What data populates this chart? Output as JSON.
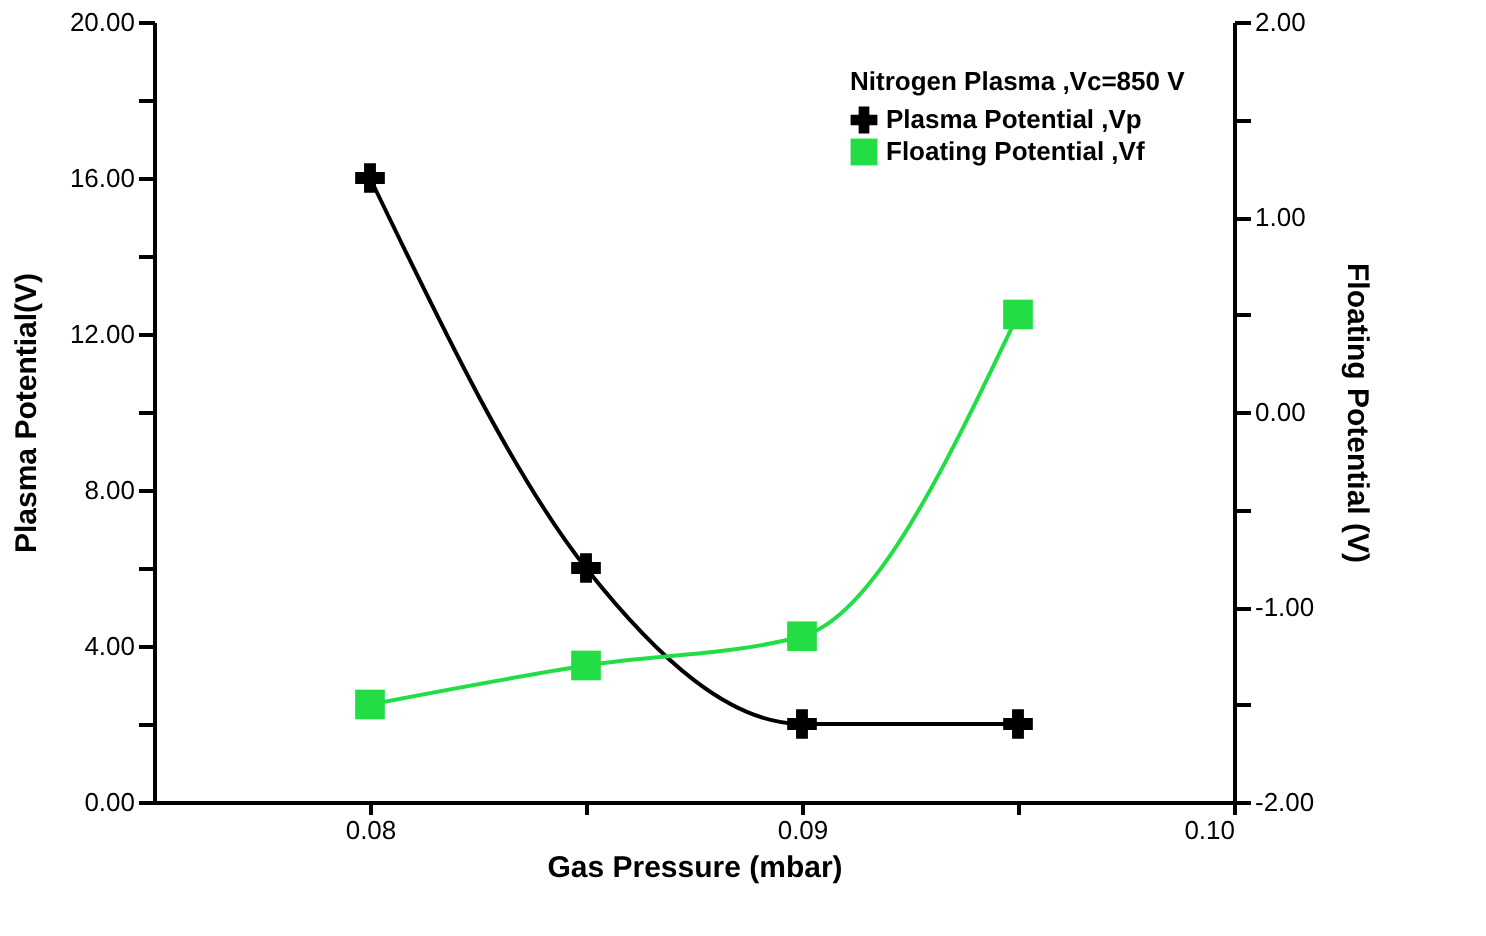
{
  "chart_data": {
    "type": "line",
    "xlabel": "Gas Pressure (mbar)",
    "ylabel": "Plasma Potential(V)",
    "y2label": "Floating Potential (V)",
    "legend_title": "Nitrogen Plasma ,Vc=850 V",
    "legend": "top right",
    "grid": false,
    "x": [
      0.08,
      0.085,
      0.09,
      0.095
    ],
    "series": [
      {
        "name": "Plasma Potential ,Vp",
        "color": "#000000",
        "marker": "cross",
        "values": [
          16.0,
          6.0,
          2.0,
          2.0
        ]
      },
      {
        "name": "Floating Potential ,Vf",
        "color": "#22dd44",
        "marker": "square",
        "axis": "y2",
        "values": [
          -1.5,
          -1.3,
          -1.15,
          0.5
        ]
      }
    ],
    "xlim": [
      0.075,
      0.1
    ],
    "xticks": [
      0.08,
      {
        "value": 0.085,
        "label": null
      },
      0.09,
      {
        "value": 0.095,
        "label": null
      },
      {
        "value": 0.1,
        "label": "0.10"
      }
    ],
    "ylim": [
      0,
      20
    ],
    "yticks": [
      {
        "value": 0,
        "label": "0.00"
      },
      {
        "value": 2,
        "label": null
      },
      {
        "value": 4,
        "label": "4.00"
      },
      {
        "value": 6,
        "label": null
      },
      {
        "value": 8,
        "label": "8.00"
      },
      {
        "value": 10,
        "label": null
      },
      {
        "value": 12,
        "label": "12.00"
      },
      {
        "value": 14,
        "label": null
      },
      {
        "value": 16,
        "label": "16.00"
      },
      {
        "value": 18,
        "label": null
      },
      {
        "value": 20,
        "label": "20.00"
      }
    ],
    "y2lim": [
      -2,
      2
    ],
    "y2ticks": [
      {
        "value": -2,
        "label": "-2.00"
      },
      {
        "value": -1.5,
        "label": null
      },
      {
        "value": -1,
        "label": "-1.00"
      },
      {
        "value": -0.5,
        "label": null
      },
      {
        "value": 0,
        "label": "0.00"
      },
      {
        "value": 0.5,
        "label": null
      },
      {
        "value": 1,
        "label": "1.00"
      },
      {
        "value": 1.5,
        "label": null
      },
      {
        "value": 2,
        "label": "2.00"
      }
    ]
  }
}
